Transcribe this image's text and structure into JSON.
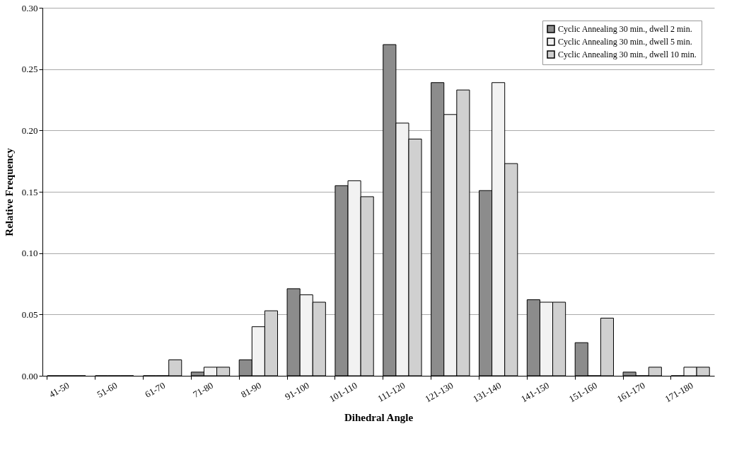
{
  "chart_data": {
    "type": "bar",
    "xlabel": "Dihedral Angle",
    "ylabel": "Relative Frequency",
    "categories": [
      "41-50",
      "51-60",
      "61-70",
      "71-80",
      "81-90",
      "91-100",
      "101-110",
      "111-120",
      "121-130",
      "131-140",
      "141-150",
      "151-160",
      "161-170",
      "171-180"
    ],
    "series": [
      {
        "name": "Cyclic Annealing 30 min., dwell 2 min.",
        "color": "#8c8c8c",
        "values": [
          0,
          0,
          0,
          0.003,
          0.013,
          0.071,
          0.155,
          0.27,
          0.239,
          0.151,
          0.062,
          0.027,
          0.003,
          0
        ]
      },
      {
        "name": "Cyclic Annealing 30 min., dwell 5 min.",
        "color": "#f2f2f2",
        "values": [
          0,
          0,
          0,
          0.007,
          0.04,
          0.066,
          0.159,
          0.206,
          0.213,
          0.239,
          0.06,
          0,
          0,
          0.007
        ]
      },
      {
        "name": "Cyclic Annealing 30 min., dwell 10 min.",
        "color": "#d0d0d0",
        "values": [
          0,
          0,
          0.013,
          0.007,
          0.053,
          0.06,
          0.146,
          0.193,
          0.233,
          0.173,
          0.06,
          0.047,
          0.007,
          0.007
        ]
      }
    ],
    "ylim": [
      0,
      0.3
    ],
    "yticks": [
      {
        "value": 0,
        "label": "0.00"
      },
      {
        "value": 0.05,
        "label": "0.05"
      },
      {
        "value": 0.1,
        "label": "0.10"
      },
      {
        "value": 0.15,
        "label": "0.15"
      },
      {
        "value": 0.2,
        "label": "0.20"
      },
      {
        "value": 0.25,
        "label": "0.25"
      },
      {
        "value": 0.3,
        "label": "0.30"
      }
    ],
    "grid": "y",
    "legend": "top right"
  }
}
